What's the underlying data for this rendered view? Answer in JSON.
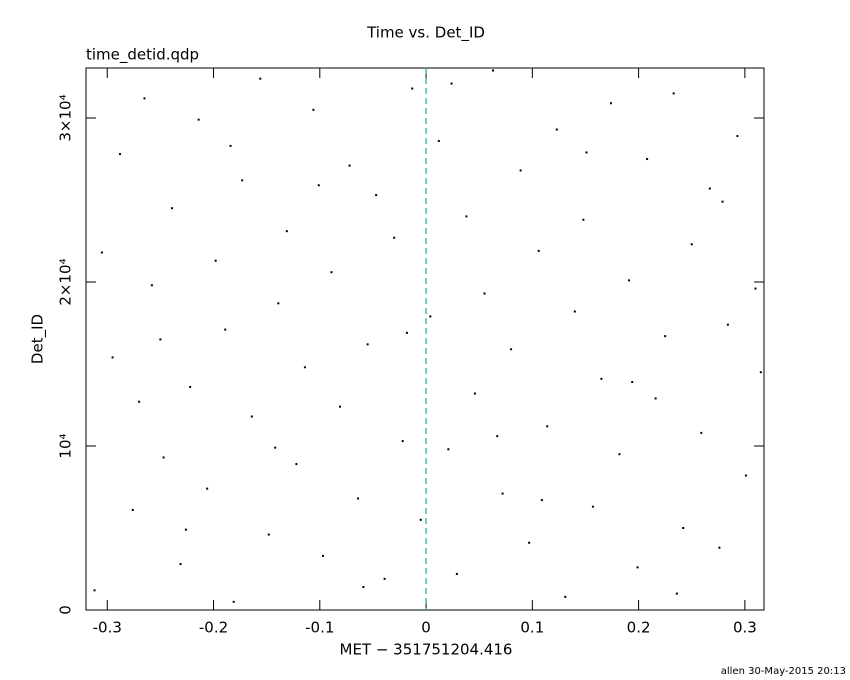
{
  "chart_data": {
    "type": "scatter",
    "title": "Time vs. Det_ID",
    "subtitle": "time_detid.qdp",
    "x_label": "MET − 351751204.416",
    "y_label": "Det_ID",
    "footer": "allen 30-May-2015 20:13",
    "xlim": [
      -0.32,
      0.318
    ],
    "ylim": [
      0,
      33050
    ],
    "xticks": [
      -0.3,
      -0.2,
      -0.1,
      0,
      0.1,
      0.2,
      0.3
    ],
    "yticks": [
      0,
      {
        "value": 10000,
        "label": "10⁴"
      },
      {
        "value": 20000,
        "label": "2×10⁴"
      },
      {
        "value": 30000,
        "label": "3×10⁴"
      }
    ],
    "reference_line_x": 0,
    "reference_line_color": "#22aaaa",
    "series": [
      {
        "color": "#000000",
        "x": [
          -0.312,
          -0.295,
          -0.288,
          -0.276,
          -0.265,
          -0.258,
          -0.247,
          -0.239,
          -0.231,
          -0.222,
          -0.214,
          -0.206,
          -0.198,
          -0.189,
          -0.181,
          -0.173,
          -0.164,
          -0.156,
          -0.148,
          -0.139,
          -0.131,
          -0.122,
          -0.114,
          -0.106,
          -0.097,
          -0.089,
          -0.081,
          -0.072,
          -0.064,
          -0.055,
          -0.047,
          -0.039,
          -0.03,
          -0.022,
          -0.013,
          -0.005,
          0.004,
          0.012,
          0.021,
          0.029,
          0.038,
          0.046,
          0.055,
          0.063,
          0.072,
          0.08,
          0.089,
          0.097,
          0.106,
          0.114,
          0.123,
          0.131,
          0.14,
          0.148,
          0.157,
          0.165,
          0.174,
          0.182,
          0.191,
          0.199,
          0.208,
          0.216,
          0.225,
          0.233,
          0.242,
          0.25,
          0.259,
          0.267,
          0.276,
          0.284,
          0.293,
          0.301,
          0.31,
          0.315,
          -0.305,
          -0.27,
          -0.226,
          -0.184,
          -0.142,
          -0.101,
          -0.059,
          -0.018,
          0.024,
          0.067,
          0.109,
          0.151,
          0.194,
          0.236,
          0.279,
          -0.25
        ],
        "values": [
          1200,
          15400,
          27800,
          6100,
          31200,
          19800,
          9300,
          24500,
          2800,
          13600,
          29900,
          7400,
          21300,
          17100,
          500,
          26200,
          11800,
          32400,
          4600,
          18700,
          23100,
          8900,
          14800,
          30500,
          3300,
          20600,
          12400,
          27100,
          6800,
          16200,
          25300,
          1900,
          22700,
          10300,
          31800,
          5500,
          17900,
          28600,
          9800,
          2200,
          24000,
          13200,
          19300,
          32900,
          7100,
          15900,
          26800,
          4100,
          21900,
          11200,
          29300,
          800,
          18200,
          23800,
          6300,
          14100,
          30900,
          9500,
          20100,
          2600,
          27500,
          12900,
          16700,
          31500,
          5000,
          22300,
          10800,
          25700,
          3800,
          17400,
          28900,
          8200,
          19600,
          14500,
          21800,
          12700,
          4900,
          28300,
          9900,
          25900,
          1400,
          16900,
          32100,
          10600,
          6700,
          27900,
          13900,
          1000,
          24900,
          16500
        ]
      }
    ]
  }
}
